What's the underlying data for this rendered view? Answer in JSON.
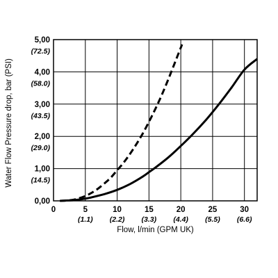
{
  "chart_data": {
    "type": "line",
    "xlabel": "Flow, l/min (GPM UK)",
    "ylabel": "Water Flow Pressure drop, bar (PSI)",
    "xlim": [
      0,
      32
    ],
    "ylim": [
      0,
      5
    ],
    "grid": true,
    "x_ticks": [
      {
        "value": 0,
        "label": "0",
        "alt": ""
      },
      {
        "value": 5,
        "label": "5",
        "alt": "(1.1)"
      },
      {
        "value": 10,
        "label": "10",
        "alt": "(2.2)"
      },
      {
        "value": 15,
        "label": "15",
        "alt": "(3.3)"
      },
      {
        "value": 20,
        "label": "20",
        "alt": "(4.4)"
      },
      {
        "value": 25,
        "label": "25",
        "alt": "(5.5)"
      },
      {
        "value": 30,
        "label": "30",
        "alt": "(6.6)"
      }
    ],
    "y_ticks": [
      {
        "value": 0,
        "label": "0,00",
        "alt": ""
      },
      {
        "value": 1,
        "label": "1,00",
        "alt": "(14.5)"
      },
      {
        "value": 2,
        "label": "2,00",
        "alt": "(29.0)"
      },
      {
        "value": 3,
        "label": "3,00",
        "alt": "(43.5)"
      },
      {
        "value": 4,
        "label": "4,00",
        "alt": "(58.0)"
      },
      {
        "value": 5,
        "label": "5,00",
        "alt": "(72.5)"
      }
    ],
    "series": [
      {
        "style": "dashed",
        "color": "#000000",
        "x": [
          1,
          2,
          3,
          4,
          5,
          6,
          7,
          8,
          9,
          10,
          11,
          12,
          13,
          14,
          15,
          16,
          17,
          18,
          19,
          20.2
        ],
        "y": [
          0.0,
          0.01,
          0.03,
          0.08,
          0.15,
          0.25,
          0.38,
          0.54,
          0.72,
          0.95,
          1.18,
          1.45,
          1.75,
          2.08,
          2.45,
          2.85,
          3.28,
          3.75,
          4.25,
          4.85
        ]
      },
      {
        "style": "solid",
        "color": "#000000",
        "x": [
          1,
          2,
          3,
          4,
          5,
          6,
          8,
          10,
          12,
          14,
          15,
          16,
          18,
          20,
          22,
          24,
          26,
          28,
          30,
          32
        ],
        "y": [
          0.0,
          0.01,
          0.02,
          0.04,
          0.07,
          0.11,
          0.21,
          0.34,
          0.52,
          0.75,
          0.89,
          1.03,
          1.34,
          1.7,
          2.09,
          2.52,
          3.0,
          3.52,
          4.07,
          4.4
        ]
      }
    ]
  }
}
